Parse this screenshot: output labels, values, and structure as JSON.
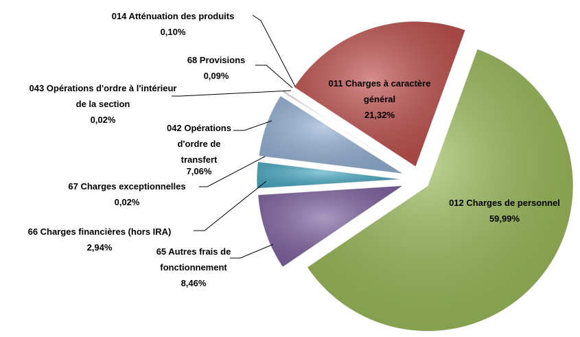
{
  "chart_data": {
    "type": "pie",
    "categories": [
      "011 Charges à caractère général",
      "012 Charges de personnel",
      "65 Autres frais de fonctionnement",
      "66 Charges financières (hors IRA)",
      "67 Charges exceptionnelles",
      "042 Opérations d'ordre de transfert",
      "043 Opérations d'ordre à l'intérieur de la section",
      "68 Provisions",
      "014 Atténuation des produits"
    ],
    "values": [
      21.32,
      59.99,
      8.46,
      2.94,
      0.02,
      7.06,
      0.02,
      0.09,
      0.1
    ],
    "value_labels": [
      "21,32%",
      "59,99%",
      "8,46%",
      "2,94%",
      "0,02%",
      "7,06%",
      "0,02%",
      "0,09%",
      "0,10%"
    ],
    "colors": [
      "#c0504d",
      "#9bbb59",
      "#8064a2",
      "#4bacc6",
      "#2c8fa8",
      "#95b3d7",
      "#f79646",
      "#4f81bd",
      "#c0504d"
    ]
  }
}
